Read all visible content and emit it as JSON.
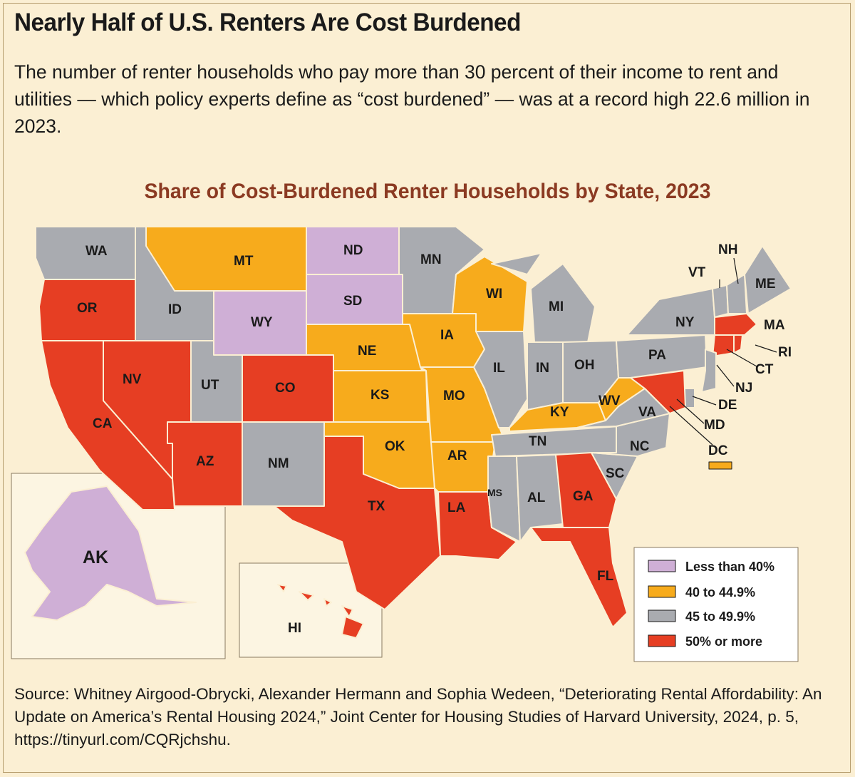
{
  "header": {
    "title": "Nearly Half of U.S. Renters Are Cost Burdened",
    "subtitle": "The number of renter households who pay more than 30 percent of their income to rent and utilities — which policy experts define as “cost burdened” — was at a record high 22.6 million in 2023."
  },
  "map": {
    "title": "Share of Cost-Burdened Renter Households by State, 2023",
    "colors": {
      "less_than_40": "#cfafd6",
      "40_to_44_9": "#f7ab1c",
      "45_to_49_9": "#a9abb0",
      "50_or_more": "#e63e23",
      "background": "#fbefd3"
    },
    "categories": {
      "less_than_40": [
        "ND",
        "SD",
        "WY",
        "AK"
      ],
      "40_to_44_9": [
        "MT",
        "WI",
        "IA",
        "NE",
        "KS",
        "MO",
        "OK",
        "AR",
        "KY",
        "WV",
        "DC"
      ],
      "45_to_49_9": [
        "WA",
        "ID",
        "UT",
        "NM",
        "MN",
        "MI",
        "IL",
        "IN",
        "OH",
        "PA",
        "NY",
        "VT",
        "NH",
        "ME",
        "NJ",
        "DE",
        "VA",
        "NC",
        "SC",
        "TN",
        "MS",
        "AL"
      ],
      "50_or_more": [
        "OR",
        "CA",
        "NV",
        "AZ",
        "CO",
        "TX",
        "LA",
        "GA",
        "FL",
        "MD",
        "MA",
        "CT",
        "RI",
        "HI"
      ]
    },
    "labels": {
      "WA": "WA",
      "OR": "OR",
      "CA": "CA",
      "NV": "NV",
      "ID": "ID",
      "MT": "MT",
      "WY": "WY",
      "UT": "UT",
      "CO": "CO",
      "AZ": "AZ",
      "NM": "NM",
      "ND": "ND",
      "SD": "SD",
      "NE": "NE",
      "KS": "KS",
      "OK": "OK",
      "TX": "TX",
      "MN": "MN",
      "IA": "IA",
      "MO": "MO",
      "AR": "AR",
      "LA": "LA",
      "WI": "WI",
      "IL": "IL",
      "MI": "MI",
      "IN": "IN",
      "OH": "OH",
      "KY": "KY",
      "TN": "TN",
      "MS": "MS",
      "AL": "AL",
      "GA": "GA",
      "FL": "FL",
      "SC": "SC",
      "NC": "NC",
      "VA": "VA",
      "WV": "WV",
      "PA": "PA",
      "NY": "NY",
      "VT": "VT",
      "NH": "NH",
      "ME": "ME",
      "MA": "MA",
      "RI": "RI",
      "CT": "CT",
      "NJ": "NJ",
      "DE": "DE",
      "MD": "MD",
      "DC": "DC",
      "AK": "AK",
      "HI": "HI"
    },
    "legend": [
      {
        "label": "Less than 40%",
        "color": "#cfafd6"
      },
      {
        "label": "40 to 44.9%",
        "color": "#f7ab1c"
      },
      {
        "label": "45 to 49.9%",
        "color": "#a9abb0"
      },
      {
        "label": "50% or more",
        "color": "#e63e23"
      }
    ]
  },
  "footer": {
    "source": "Source: Whitney Airgood-Obrycki, Alexander Hermann and Sophia Wedeen, “Deteriorating Rental Affordability: An Update on America’s Rental Housing 2024,” Joint Center for Housing Studies of Harvard University, 2024, p. 5, https://tinyurl.com/CQRjchshu."
  }
}
